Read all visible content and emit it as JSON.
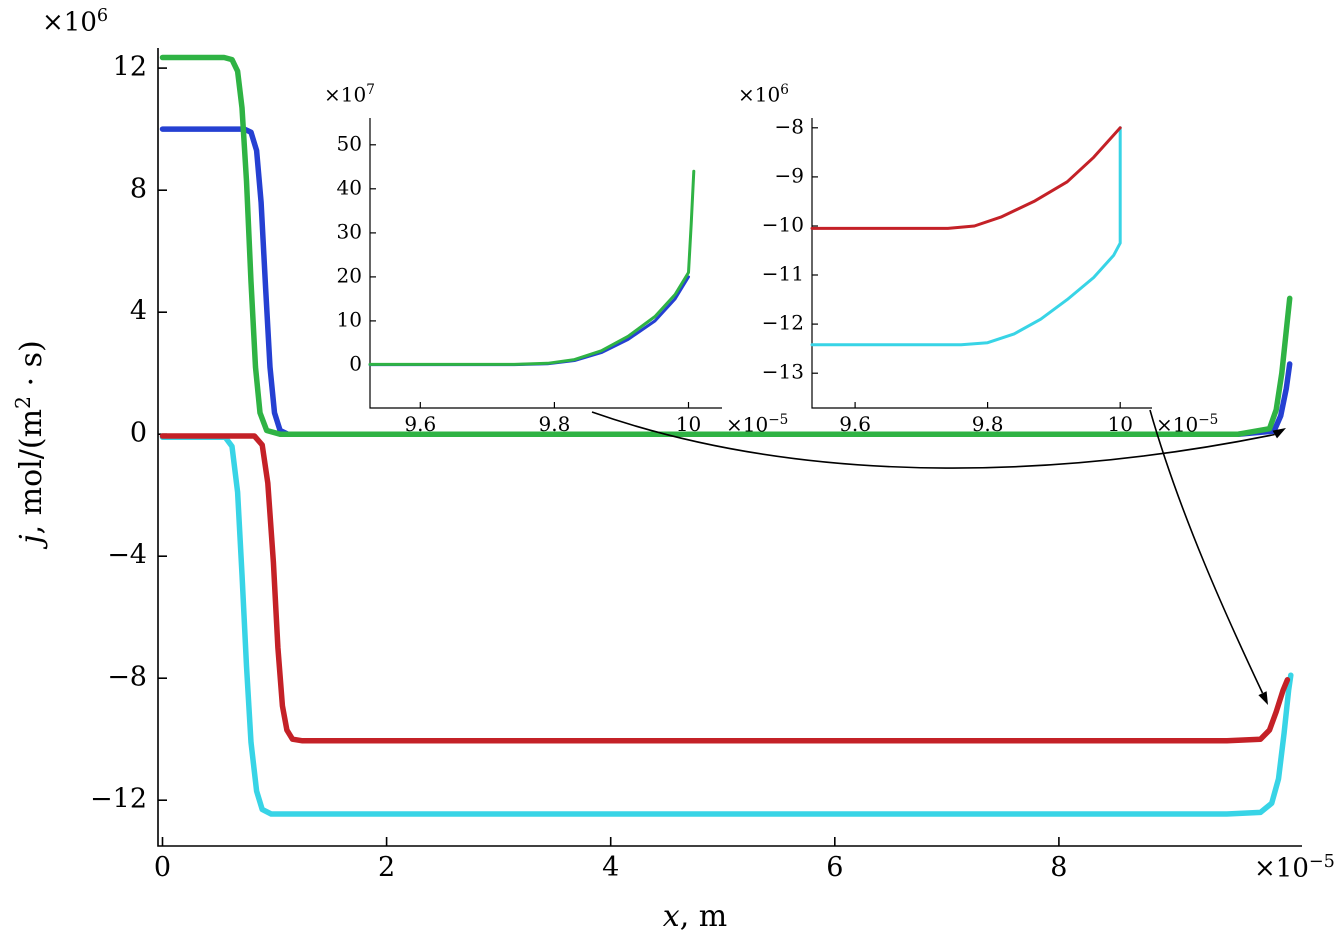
{
  "labels": {
    "ylabel_var": "j",
    "ylabel_mid": ", mol/(m",
    "ylabel_sup": "2",
    "ylabel_end": " · s)",
    "xlabel_var": "x",
    "xlabel_rest": ", m",
    "main_y_mult_base": "×10",
    "main_y_mult_exp": "6",
    "main_x_mult_base": "×10",
    "main_x_mult_exp": "−5",
    "inset1_y_mult_base": "×10",
    "inset1_y_mult_exp": "7",
    "inset1_x_mult_base": "×10",
    "inset1_x_mult_exp": "−5",
    "inset2_y_mult_base": "×10",
    "inset2_y_mult_exp": "6",
    "inset2_x_mult_base": "×10",
    "inset2_x_mult_exp": "−5"
  },
  "colors": {
    "green": "#2fb344",
    "blue": "#2540d2",
    "red": "#c42127",
    "cyan": "#38d4e6",
    "axis": "#000000"
  },
  "chart_data": [
    {
      "id": "main",
      "type": "line",
      "title": "",
      "xlabel": "x, m",
      "ylabel": "j, mol/(m^2 · s)",
      "x_scale_label": "×10^-5",
      "y_scale_label": "×10^6",
      "xlim": [
        -0.04,
        10.17
      ],
      "ylim": [
        -13.5,
        12.66
      ],
      "grid": false,
      "legend": "none",
      "xticks": [
        0,
        2,
        4,
        6,
        8
      ],
      "xtick_labels": [
        "0",
        "2",
        "4",
        "6",
        "8"
      ],
      "yticks": [
        -12,
        -8,
        -4,
        0,
        4,
        8,
        12
      ],
      "ytick_labels": [
        "−12",
        "−8",
        "−4",
        "0",
        "4",
        "8",
        "12"
      ],
      "series": [
        {
          "name": "blue",
          "color": "#2540d2",
          "width": 5.5,
          "x": [
            0,
            0.73,
            0.79,
            0.84,
            0.88,
            0.92,
            0.96,
            1.0,
            1.05,
            1.12,
            2,
            5,
            9.6,
            9.92,
            9.98,
            10.03,
            10.06
          ],
          "y": [
            10,
            10,
            9.9,
            9.3,
            7.6,
            4.8,
            2.2,
            0.7,
            0.12,
            0,
            0,
            0,
            0,
            0.1,
            0.6,
            1.5,
            2.3
          ]
        },
        {
          "name": "green",
          "color": "#2fb344",
          "width": 5.5,
          "x": [
            0,
            0.55,
            0.62,
            0.67,
            0.71,
            0.75,
            0.79,
            0.83,
            0.87,
            0.93,
            1.05,
            2,
            5,
            8,
            9.6,
            9.88,
            9.94,
            9.99,
            10.03,
            10.06
          ],
          "y": [
            12.35,
            12.35,
            12.28,
            11.9,
            10.7,
            8.3,
            5.0,
            2.2,
            0.7,
            0.12,
            0,
            0,
            0,
            0,
            0,
            0.18,
            0.8,
            2.0,
            3.4,
            4.45
          ]
        },
        {
          "name": "cyan",
          "color": "#38d4e6",
          "width": 5.5,
          "x": [
            0,
            0.56,
            0.62,
            0.67,
            0.71,
            0.75,
            0.79,
            0.84,
            0.89,
            0.97,
            1.1,
            2,
            5,
            9.5,
            9.8,
            9.9,
            9.96,
            10.01,
            10.05,
            10.07
          ],
          "y": [
            -0.1,
            -0.1,
            -0.4,
            -1.9,
            -4.6,
            -7.6,
            -10.1,
            -11.7,
            -12.3,
            -12.45,
            -12.45,
            -12.45,
            -12.45,
            -12.45,
            -12.4,
            -12.1,
            -11.3,
            -9.8,
            -8.4,
            -7.9
          ]
        },
        {
          "name": "red",
          "color": "#c42127",
          "width": 5.5,
          "x": [
            0,
            0.82,
            0.89,
            0.94,
            0.99,
            1.03,
            1.07,
            1.11,
            1.16,
            1.25,
            2,
            5,
            9.5,
            9.8,
            9.88,
            9.94,
            10.0,
            10.04
          ],
          "y": [
            -0.06,
            -0.06,
            -0.35,
            -1.6,
            -4.2,
            -7.0,
            -8.9,
            -9.7,
            -10.0,
            -10.05,
            -10.05,
            -10.05,
            -10.05,
            -10.0,
            -9.7,
            -9.1,
            -8.4,
            -8.05
          ]
        }
      ]
    },
    {
      "id": "inset-left",
      "type": "line",
      "title": "",
      "y_scale_label": "×10^7",
      "x_scale_label": "×10^-5",
      "xlim": [
        9.525,
        10.05
      ],
      "ylim": [
        -9.8,
        56.1
      ],
      "grid": false,
      "xticks": [
        9.6,
        9.8,
        10
      ],
      "xtick_labels": [
        "9.6",
        "9.8",
        "10"
      ],
      "yticks": [
        0,
        10,
        20,
        30,
        40,
        50
      ],
      "ytick_labels": [
        "0",
        "10",
        "20",
        "30",
        "40",
        "50"
      ],
      "series": [
        {
          "name": "blue",
          "color": "#2540d2",
          "width": 3,
          "x": [
            9.525,
            9.74,
            9.79,
            9.83,
            9.87,
            9.91,
            9.95,
            9.98,
            10.0
          ],
          "y": [
            0.07,
            0.07,
            0.25,
            1.0,
            2.8,
            5.8,
            10,
            15,
            20
          ]
        },
        {
          "name": "green",
          "color": "#2fb344",
          "width": 3,
          "x": [
            9.525,
            9.74,
            9.79,
            9.83,
            9.87,
            9.91,
            9.95,
            9.98,
            10.0,
            10.004,
            10.008
          ],
          "y": [
            0.1,
            0.1,
            0.35,
            1.2,
            3.2,
            6.5,
            11,
            16,
            21,
            32,
            44
          ]
        }
      ]
    },
    {
      "id": "inset-right",
      "type": "line",
      "title": "",
      "y_scale_label": "×10^6",
      "x_scale_label": "×10^-5",
      "xlim": [
        9.535,
        10.048
      ],
      "ylim": [
        -13.71,
        -7.8
      ],
      "grid": false,
      "xticks": [
        9.6,
        9.8,
        10
      ],
      "xtick_labels": [
        "9.6",
        "9.8",
        "10"
      ],
      "yticks": [
        -13,
        -12,
        -11,
        -10,
        -9,
        -8
      ],
      "ytick_labels": [
        "−13",
        "−12",
        "−11",
        "−10",
        "−9",
        "−8"
      ],
      "series": [
        {
          "name": "cyan",
          "color": "#38d4e6",
          "width": 3,
          "x": [
            9.535,
            9.76,
            9.8,
            9.84,
            9.88,
            9.92,
            9.96,
            9.99,
            10.0,
            10.0
          ],
          "y": [
            -12.42,
            -12.42,
            -12.38,
            -12.2,
            -11.9,
            -11.5,
            -11.05,
            -10.6,
            -10.35,
            -8.0
          ]
        },
        {
          "name": "red",
          "color": "#c42127",
          "width": 3,
          "x": [
            9.535,
            9.74,
            9.78,
            9.82,
            9.87,
            9.92,
            9.96,
            10.0
          ],
          "y": [
            -10.05,
            -10.05,
            -10.0,
            -9.82,
            -9.5,
            -9.1,
            -8.6,
            -8.0
          ]
        }
      ]
    }
  ]
}
